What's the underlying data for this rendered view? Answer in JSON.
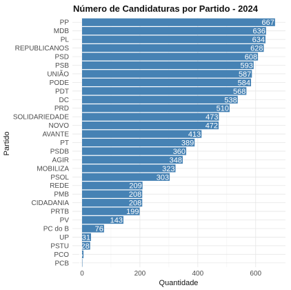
{
  "chart_data": {
    "type": "bar",
    "orientation": "horizontal",
    "title": "Número de Candidaturas por Partido - 2024",
    "xlabel": "Quantidade",
    "ylabel": "Partido",
    "xlim": [
      0,
      690
    ],
    "xticks": [
      0,
      200,
      400,
      600
    ],
    "grid": true,
    "bar_color": "#4682B4",
    "categories": [
      "PP",
      "MDB",
      "PL",
      "REPUBLICANOS",
      "PSD",
      "PSB",
      "UNIÃO",
      "PODE",
      "PDT",
      "DC",
      "PRD",
      "SOLIDARIEDADE",
      "NOVO",
      "AVANTE",
      "PT",
      "PSDB",
      "AGIR",
      "MOBILIZA",
      "PSOL",
      "REDE",
      "PMB",
      "CIDADANIA",
      "PRTB",
      "PV",
      "PC do B",
      "UP",
      "PSTU",
      "PCO",
      "PCB"
    ],
    "values": [
      667,
      636,
      634,
      628,
      608,
      593,
      587,
      584,
      568,
      538,
      510,
      473,
      472,
      413,
      389,
      360,
      348,
      323,
      303,
      209,
      208,
      208,
      199,
      143,
      76,
      31,
      28,
      5,
      1
    ]
  }
}
